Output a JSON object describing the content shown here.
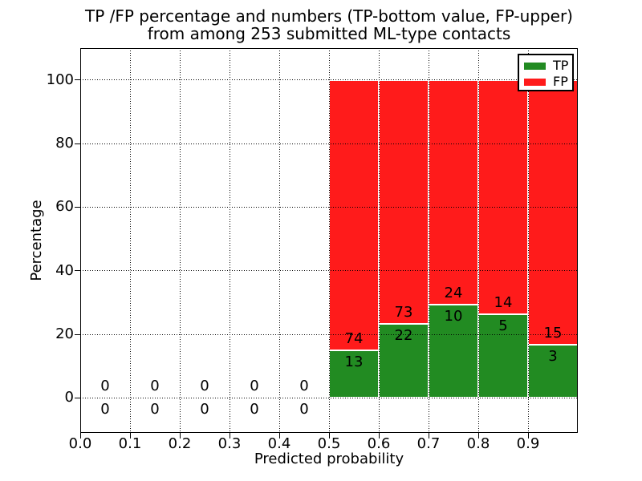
{
  "chart_data": {
    "type": "bar",
    "stacked": true,
    "title_lines": [
      "TP /FP percentage and numbers (TP-bottom value, FP-upper)",
      "from among 253 submitted ML-type contacts"
    ],
    "xlabel": "Predicted probability",
    "ylabel": "Percentage",
    "xlim": [
      0.0,
      1.0
    ],
    "ylim": [
      -11,
      110
    ],
    "xtick_labels": [
      "0.0",
      "0.1",
      "0.2",
      "0.3",
      "0.4",
      "0.5",
      "0.6",
      "0.7",
      "0.8",
      "0.9"
    ],
    "ytick_values": [
      0,
      20,
      40,
      60,
      80,
      100
    ],
    "grid": "dotted",
    "total_contacts": 253,
    "bin_edges": [
      0.0,
      0.1,
      0.2,
      0.3,
      0.4,
      0.5,
      0.6,
      0.7,
      0.8,
      0.9,
      1.0
    ],
    "series": [
      {
        "name": "TP",
        "color": "#228B22",
        "counts": [
          0,
          0,
          0,
          0,
          0,
          13,
          22,
          10,
          5,
          3
        ],
        "pct": [
          0,
          0,
          0,
          0,
          0,
          14.94,
          23.16,
          29.41,
          26.32,
          16.67
        ]
      },
      {
        "name": "FP",
        "color": "#FF1B1B",
        "counts": [
          0,
          0,
          0,
          0,
          0,
          74,
          73,
          24,
          14,
          15
        ],
        "pct": [
          0,
          0,
          0,
          0,
          0,
          85.06,
          76.84,
          70.59,
          73.68,
          83.33
        ]
      }
    ],
    "legend": {
      "position": "upper right",
      "entries": [
        {
          "label": "TP",
          "color": "#228B22"
        },
        {
          "label": "FP",
          "color": "#FF1B1B"
        }
      ]
    }
  }
}
